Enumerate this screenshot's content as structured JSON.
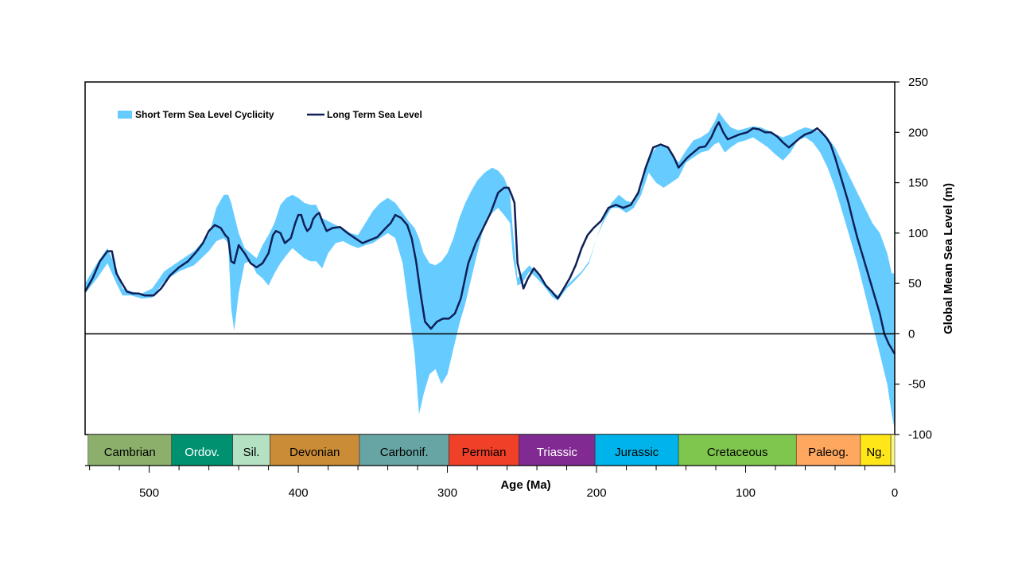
{
  "chart_data": {
    "type": "area",
    "xlabel": "Age (Ma)",
    "ylabel": "Global Mean Sea Level (m)",
    "xlim": [
      543,
      0
    ],
    "ylim": [
      -100,
      250
    ],
    "x_ticks": [
      500,
      400,
      300,
      200,
      100,
      0
    ],
    "y_ticks": [
      -100,
      -50,
      0,
      50,
      100,
      150,
      200,
      250
    ],
    "grid": false,
    "legend_position": "top-left",
    "series": [
      {
        "name": "Short Term Sea Level Cyclicity",
        "kind": "band",
        "color": "#66CCFF",
        "x": [
          543,
          535,
          528,
          522,
          518,
          512,
          505,
          498,
          490,
          480,
          470,
          460,
          455,
          450,
          447,
          445,
          443,
          440,
          436,
          432,
          428,
          424,
          420,
          416,
          412,
          408,
          404,
          400,
          396,
          392,
          388,
          384,
          380,
          375,
          370,
          365,
          360,
          355,
          350,
          345,
          340,
          335,
          330,
          326,
          322,
          319,
          316,
          312,
          308,
          304,
          300,
          296,
          292,
          288,
          284,
          280,
          275,
          270,
          266,
          262,
          258,
          256,
          253,
          250,
          245,
          240,
          235,
          230,
          226,
          220,
          215,
          210,
          205,
          200,
          195,
          190,
          185,
          180,
          175,
          170,
          165,
          160,
          155,
          150,
          145,
          140,
          135,
          130,
          125,
          121,
          118,
          114,
          110,
          105,
          100,
          95,
          90,
          85,
          80,
          75,
          70,
          65,
          60,
          55,
          50,
          45,
          40,
          35,
          30,
          25,
          20,
          15,
          10,
          5,
          2,
          0
        ],
        "upper": [
          50,
          70,
          85,
          65,
          45,
          42,
          40,
          45,
          62,
          72,
          82,
          98,
          125,
          138,
          138,
          130,
          118,
          100,
          85,
          80,
          75,
          88,
          98,
          110,
          128,
          135,
          138,
          135,
          130,
          128,
          128,
          115,
          112,
          108,
          105,
          100,
          98,
          110,
          122,
          130,
          135,
          130,
          120,
          112,
          105,
          95,
          80,
          70,
          68,
          72,
          80,
          95,
          115,
          130,
          142,
          152,
          160,
          165,
          162,
          155,
          140,
          100,
          55,
          60,
          68,
          60,
          52,
          42,
          38,
          48,
          55,
          62,
          72,
          95,
          115,
          130,
          138,
          132,
          130,
          145,
          175,
          185,
          188,
          180,
          170,
          182,
          192,
          195,
          200,
          210,
          220,
          212,
          205,
          202,
          204,
          206,
          205,
          202,
          198,
          195,
          198,
          202,
          205,
          203,
          200,
          195,
          185,
          170,
          155,
          140,
          125,
          110,
          100,
          80,
          60,
          60
        ],
        "lower": [
          40,
          55,
          70,
          50,
          38,
          38,
          35,
          36,
          52,
          62,
          68,
          82,
          92,
          95,
          90,
          25,
          3,
          40,
          70,
          72,
          60,
          55,
          48,
          60,
          70,
          78,
          85,
          80,
          75,
          72,
          72,
          65,
          80,
          90,
          92,
          88,
          85,
          88,
          90,
          95,
          100,
          95,
          70,
          25,
          -20,
          -80,
          -60,
          -40,
          -35,
          -50,
          -40,
          -15,
          10,
          30,
          55,
          80,
          110,
          120,
          125,
          118,
          110,
          75,
          48,
          50,
          62,
          55,
          47,
          37,
          33,
          45,
          52,
          60,
          70,
          95,
          112,
          125,
          125,
          120,
          125,
          138,
          160,
          150,
          145,
          150,
          155,
          170,
          175,
          180,
          182,
          188,
          190,
          180,
          185,
          190,
          192,
          195,
          190,
          185,
          178,
          172,
          180,
          192,
          195,
          190,
          180,
          165,
          145,
          120,
          95,
          70,
          40,
          10,
          -20,
          -50,
          -80,
          -95
        ]
      },
      {
        "name": "Long Term Sea Level",
        "kind": "line",
        "color": "#0E2057",
        "x": [
          543,
          538,
          533,
          528,
          525,
          522,
          519,
          515,
          511,
          507,
          503,
          497,
          492,
          486,
          480,
          474,
          468,
          464,
          460,
          456,
          452,
          449,
          447,
          445,
          443,
          440,
          436,
          432,
          428,
          424,
          420,
          417,
          415,
          412,
          409,
          405,
          402,
          400,
          398,
          396,
          394,
          392,
          390,
          388,
          386,
          384,
          381,
          377,
          372,
          367,
          362,
          357,
          352,
          347,
          342,
          338,
          335,
          331,
          327,
          324,
          321,
          318,
          315,
          311,
          307,
          303,
          299,
          295,
          291,
          286,
          281,
          276,
          271,
          266,
          262,
          259,
          257,
          255,
          253,
          249,
          246,
          242,
          238,
          234,
          230,
          226,
          222,
          218,
          214,
          210,
          206,
          202,
          197,
          192,
          187,
          182,
          177,
          172,
          167,
          162,
          157,
          152,
          148,
          145,
          142,
          139,
          135,
          131,
          127,
          123,
          120,
          118,
          115,
          112,
          109,
          104,
          99,
          95,
          91,
          87,
          83,
          79,
          75,
          71,
          67,
          63,
          60,
          56,
          52,
          49,
          46,
          43,
          40,
          37,
          34,
          31,
          28,
          25,
          22,
          19,
          16,
          13,
          10,
          7,
          4,
          2,
          0
        ],
        "y": [
          42,
          55,
          72,
          82,
          82,
          60,
          52,
          42,
          40,
          40,
          38,
          38,
          45,
          58,
          66,
          72,
          82,
          90,
          102,
          108,
          105,
          98,
          95,
          72,
          70,
          88,
          80,
          70,
          66,
          70,
          80,
          98,
          102,
          100,
          90,
          95,
          110,
          118,
          118,
          108,
          102,
          105,
          114,
          118,
          120,
          112,
          102,
          105,
          106,
          100,
          95,
          90,
          93,
          96,
          104,
          110,
          118,
          115,
          108,
          95,
          72,
          40,
          12,
          5,
          12,
          15,
          15,
          20,
          35,
          70,
          90,
          105,
          120,
          140,
          145,
          145,
          138,
          130,
          70,
          45,
          55,
          65,
          58,
          48,
          42,
          35,
          45,
          55,
          68,
          85,
          98,
          105,
          112,
          125,
          128,
          125,
          128,
          140,
          165,
          185,
          188,
          185,
          175,
          165,
          170,
          175,
          180,
          185,
          186,
          195,
          205,
          210,
          200,
          193,
          195,
          198,
          200,
          204,
          203,
          200,
          200,
          196,
          190,
          185,
          190,
          195,
          198,
          200,
          204,
          200,
          195,
          188,
          175,
          160,
          145,
          130,
          112,
          95,
          80,
          65,
          50,
          35,
          20,
          0,
          -10,
          -15,
          -20
        ]
      }
    ],
    "periods": [
      {
        "label": "Cambrian",
        "start": 541,
        "end": 485,
        "color": "#8CB06C",
        "text_color": "#000000"
      },
      {
        "label": "Ordov.",
        "start": 485,
        "end": 444,
        "color": "#009270",
        "text_color": "#ffffff"
      },
      {
        "label": "Sil.",
        "start": 444,
        "end": 419,
        "color": "#B3E1C2",
        "text_color": "#000000"
      },
      {
        "label": "Devonian",
        "start": 419,
        "end": 359,
        "color": "#CB8C37",
        "text_color": "#000000"
      },
      {
        "label": "Carbonif.",
        "start": 359,
        "end": 299,
        "color": "#67A5A4",
        "text_color": "#000000"
      },
      {
        "label": "Permian",
        "start": 299,
        "end": 252,
        "color": "#F04028",
        "text_color": "#000000"
      },
      {
        "label": "Triassic",
        "start": 252,
        "end": 201,
        "color": "#812B92",
        "text_color": "#ffffff"
      },
      {
        "label": "Jurassic",
        "start": 201,
        "end": 145,
        "color": "#00B4EB",
        "text_color": "#000000"
      },
      {
        "label": "Cretaceous",
        "start": 145,
        "end": 66,
        "color": "#7FC64E",
        "text_color": "#000000"
      },
      {
        "label": "Paleog.",
        "start": 66,
        "end": 23,
        "color": "#FDA75F",
        "text_color": "#000000"
      },
      {
        "label": "Ng.",
        "start": 23,
        "end": 2.6,
        "color": "#FFE619",
        "text_color": "#000000"
      },
      {
        "label": "",
        "start": 2.6,
        "end": 0,
        "color": "#F9F97F",
        "text_color": "#000000"
      }
    ]
  }
}
